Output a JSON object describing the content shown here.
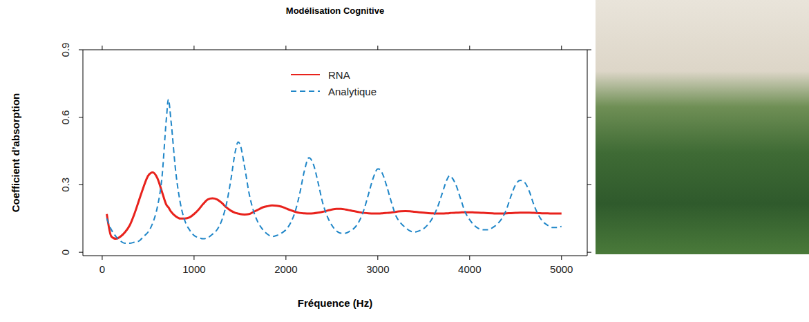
{
  "chart_data": {
    "type": "line",
    "title": "Modélisation Cognitive",
    "x_label": "Fréquence (Hz)",
    "y_label": "Coefficient d’absorption",
    "legend": "top",
    "grid": false,
    "xlim": [
      -210,
      5280
    ],
    "xticks": [
      0,
      1000,
      2000,
      3000,
      4000,
      5000
    ],
    "ylim": [
      -0.015,
      0.9
    ],
    "yticks": [
      0,
      0.3,
      0.6,
      0.9
    ],
    "x": [
      50,
      100,
      150,
      200,
      250,
      300,
      350,
      400,
      450,
      500,
      550,
      600,
      650,
      700,
      720,
      750,
      800,
      850,
      900,
      950,
      1000,
      1050,
      1100,
      1150,
      1200,
      1250,
      1300,
      1350,
      1400,
      1450,
      1480,
      1500,
      1550,
      1600,
      1650,
      1700,
      1750,
      1800,
      1850,
      1900,
      1950,
      2000,
      2050,
      2100,
      2150,
      2200,
      2250,
      2300,
      2350,
      2400,
      2450,
      2500,
      2550,
      2600,
      2650,
      2700,
      2750,
      2800,
      2850,
      2900,
      2950,
      3000,
      3010,
      3050,
      3100,
      3150,
      3200,
      3250,
      3300,
      3350,
      3400,
      3450,
      3500,
      3550,
      3600,
      3650,
      3700,
      3750,
      3780,
      3800,
      3850,
      3900,
      3950,
      4000,
      4050,
      4100,
      4150,
      4200,
      4250,
      4300,
      4350,
      4400,
      4450,
      4500,
      4550,
      4600,
      4650,
      4700,
      4750,
      4800,
      4850,
      4900,
      4950,
      5000
    ],
    "series": [
      {
        "name": "RNA",
        "color": "#e8221c",
        "line_style": "solid",
        "values": [
          0.17,
          0.07,
          0.06,
          0.07,
          0.09,
          0.12,
          0.17,
          0.23,
          0.29,
          0.34,
          0.355,
          0.33,
          0.27,
          0.21,
          0.2,
          0.18,
          0.16,
          0.15,
          0.15,
          0.155,
          0.17,
          0.19,
          0.215,
          0.235,
          0.24,
          0.235,
          0.22,
          0.2,
          0.185,
          0.175,
          0.172,
          0.17,
          0.168,
          0.17,
          0.18,
          0.19,
          0.2,
          0.205,
          0.208,
          0.207,
          0.203,
          0.195,
          0.187,
          0.18,
          0.175,
          0.173,
          0.172,
          0.173,
          0.176,
          0.18,
          0.185,
          0.19,
          0.193,
          0.193,
          0.19,
          0.186,
          0.182,
          0.178,
          0.175,
          0.173,
          0.172,
          0.172,
          0.172,
          0.173,
          0.175,
          0.177,
          0.18,
          0.182,
          0.183,
          0.182,
          0.18,
          0.178,
          0.176,
          0.174,
          0.173,
          0.172,
          0.172,
          0.173,
          0.174,
          0.175,
          0.176,
          0.177,
          0.178,
          0.178,
          0.177,
          0.176,
          0.175,
          0.174,
          0.173,
          0.172,
          0.172,
          0.173,
          0.174,
          0.175,
          0.176,
          0.176,
          0.176,
          0.175,
          0.174,
          0.173,
          0.173,
          0.172,
          0.172,
          0.172
        ]
      },
      {
        "name": "Analytique",
        "color": "#1f86c8",
        "line_style": "dashed",
        "values": [
          0.15,
          0.1,
          0.07,
          0.05,
          0.04,
          0.04,
          0.045,
          0.05,
          0.07,
          0.09,
          0.13,
          0.2,
          0.33,
          0.6,
          0.68,
          0.58,
          0.36,
          0.22,
          0.14,
          0.1,
          0.075,
          0.065,
          0.06,
          0.065,
          0.08,
          0.1,
          0.14,
          0.21,
          0.32,
          0.45,
          0.49,
          0.48,
          0.38,
          0.26,
          0.18,
          0.13,
          0.1,
          0.08,
          0.07,
          0.075,
          0.085,
          0.1,
          0.13,
          0.18,
          0.26,
          0.36,
          0.42,
          0.39,
          0.31,
          0.22,
          0.16,
          0.12,
          0.095,
          0.085,
          0.085,
          0.095,
          0.11,
          0.14,
          0.19,
          0.26,
          0.33,
          0.37,
          0.37,
          0.35,
          0.29,
          0.22,
          0.16,
          0.13,
          0.11,
          0.095,
          0.09,
          0.095,
          0.105,
          0.125,
          0.155,
          0.2,
          0.26,
          0.32,
          0.34,
          0.335,
          0.3,
          0.24,
          0.18,
          0.145,
          0.12,
          0.105,
          0.1,
          0.1,
          0.11,
          0.125,
          0.15,
          0.19,
          0.25,
          0.3,
          0.32,
          0.31,
          0.27,
          0.21,
          0.165,
          0.135,
          0.12,
          0.11,
          0.11,
          0.115
        ]
      }
    ]
  }
}
